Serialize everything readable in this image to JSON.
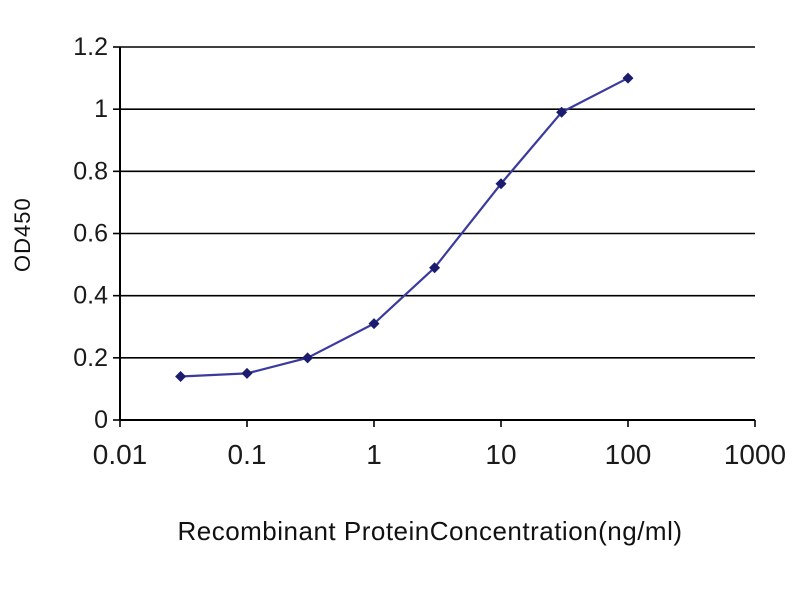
{
  "chart_data": {
    "type": "line",
    "title": "",
    "xlabel": "Recombinant ProteinConcentration(ng/ml)",
    "ylabel": "OD450",
    "x": [
      0.03,
      0.1,
      0.3,
      1,
      3,
      10,
      30,
      100
    ],
    "y": [
      0.14,
      0.15,
      0.2,
      0.31,
      0.49,
      0.76,
      0.99,
      1.1
    ],
    "x_scale": "log",
    "xlim": [
      0.01,
      1000
    ],
    "ylim": [
      0,
      1.2
    ],
    "x_ticks": [
      "0.01",
      "0.1",
      "1",
      "10",
      "100",
      "1000"
    ],
    "y_ticks": [
      "0",
      "0.2",
      "0.4",
      "0.6",
      "0.8",
      "1",
      "1.2"
    ],
    "grid": "horizontal",
    "legend": "none",
    "line_color": "#3b3b9e",
    "marker_color": "#1c1c6e",
    "marker": "diamond",
    "axis_color": "#000000",
    "gridline_color": "#000000",
    "tick_text_color": "#1a1a1a"
  }
}
